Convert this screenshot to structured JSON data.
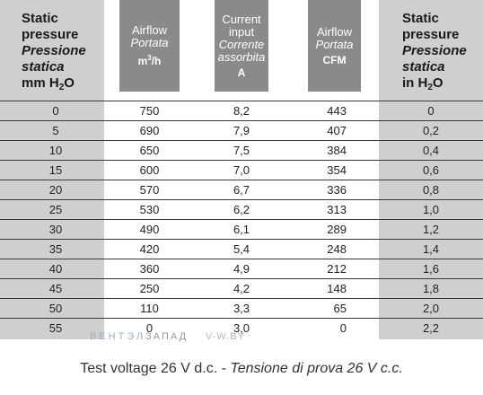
{
  "header": {
    "static_left": {
      "line1": "Static",
      "line2": "pressure",
      "line3": "Pressione",
      "line4": "statica",
      "unit_base": "mm H",
      "unit_sub": "2",
      "unit_tail": "O"
    },
    "airflow_m3h": {
      "line1": "Airflow",
      "line2": "Portata",
      "unit_base": "m",
      "unit_sup": "3",
      "unit_tail": "/h"
    },
    "current": {
      "line1": "Current",
      "line2": "input",
      "line3": "Corrente",
      "line4": "assorbita",
      "unit": "A"
    },
    "airflow_cfm": {
      "line1": "Airflow",
      "line2": "Portata",
      "unit": "CFM"
    },
    "static_right": {
      "line1": "Static",
      "line2": "pressure",
      "line3": "Pressione",
      "line4": "statica",
      "unit_base": "in H",
      "unit_sub": "2",
      "unit_tail": "O"
    }
  },
  "rows": [
    {
      "mm": "0",
      "m3h": "750",
      "a": "8,2",
      "cfm": "443",
      "in": "0"
    },
    {
      "mm": "5",
      "m3h": "690",
      "a": "7,9",
      "cfm": "407",
      "in": "0,2"
    },
    {
      "mm": "10",
      "m3h": "650",
      "a": "7,5",
      "cfm": "384",
      "in": "0,4"
    },
    {
      "mm": "15",
      "m3h": "600",
      "a": "7,0",
      "cfm": "354",
      "in": "0,6"
    },
    {
      "mm": "20",
      "m3h": "570",
      "a": "6,7",
      "cfm": "336",
      "in": "0,8"
    },
    {
      "mm": "25",
      "m3h": "530",
      "a": "6,2",
      "cfm": "313",
      "in": "1,0"
    },
    {
      "mm": "30",
      "m3h": "490",
      "a": "6,1",
      "cfm": "289",
      "in": "1,2"
    },
    {
      "mm": "35",
      "m3h": "420",
      "a": "5,4",
      "cfm": "248",
      "in": "1,4"
    },
    {
      "mm": "40",
      "m3h": "360",
      "a": "4,9",
      "cfm": "212",
      "in": "1,6"
    },
    {
      "mm": "45",
      "m3h": "250",
      "a": "4,2",
      "cfm": "148",
      "in": "1,8"
    },
    {
      "mm": "50",
      "m3h": "110",
      "a": "3,3",
      "cfm": "65",
      "in": "2,0"
    },
    {
      "mm": "55",
      "m3h": "0",
      "a": "3,0",
      "cfm": "0",
      "in": "2,2"
    }
  ],
  "watermark": {
    "part1": "ВЕНТЭЛ",
    "part2": "ЗАПАД",
    "part3": "V-W.BY"
  },
  "footer": {
    "text": "Test voltage 26 V d.c. - ",
    "italic": "Tensione di prova 26 V c.c."
  }
}
